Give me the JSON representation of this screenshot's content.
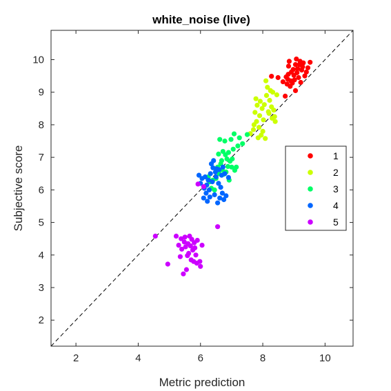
{
  "chart_data": {
    "type": "scatter",
    "title": "white_noise (live)",
    "xlabel": "Metric prediction",
    "ylabel": "Subjective score",
    "xlim": [
      1.2,
      10.9
    ],
    "ylim": [
      1.2,
      10.9
    ],
    "xticks": [
      2,
      4,
      6,
      8,
      10
    ],
    "yticks": [
      2,
      3,
      4,
      5,
      6,
      7,
      8,
      9,
      10
    ],
    "grid": false,
    "legend_position": "right",
    "reference_line": {
      "style": "dashed",
      "color": "#000000",
      "from": [
        1.2,
        1.2
      ],
      "to": [
        10.9,
        10.9
      ]
    },
    "series": [
      {
        "name": "1",
        "color": "#ff0000",
        "points": [
          [
            8.28,
            9.49
          ],
          [
            8.49,
            9.45
          ],
          [
            8.65,
            9.32
          ],
          [
            8.72,
            8.88
          ],
          [
            8.75,
            9.47
          ],
          [
            8.78,
            9.25
          ],
          [
            8.8,
            9.4
          ],
          [
            8.82,
            9.55
          ],
          [
            8.83,
            9.8
          ],
          [
            8.85,
            9.95
          ],
          [
            8.88,
            9.18
          ],
          [
            8.9,
            9.35
          ],
          [
            8.92,
            9.62
          ],
          [
            8.95,
            9.28
          ],
          [
            8.98,
            9.7
          ],
          [
            9.0,
            9.52
          ],
          [
            9.02,
            9.38
          ],
          [
            9.05,
            9.05
          ],
          [
            9.05,
            9.85
          ],
          [
            9.08,
            10.02
          ],
          [
            9.1,
            9.6
          ],
          [
            9.12,
            9.72
          ],
          [
            9.15,
            9.45
          ],
          [
            9.18,
            9.85
          ],
          [
            9.2,
            9.95
          ],
          [
            9.22,
            9.3
          ],
          [
            9.25,
            9.68
          ],
          [
            9.28,
            9.78
          ],
          [
            9.3,
            9.9
          ],
          [
            9.35,
            9.5
          ],
          [
            9.4,
            9.62
          ],
          [
            9.45,
            9.75
          ],
          [
            9.52,
            9.92
          ]
        ]
      },
      {
        "name": "2",
        "color": "#ccff00",
        "points": [
          [
            7.6,
            7.73
          ],
          [
            7.7,
            7.85
          ],
          [
            7.72,
            8.0
          ],
          [
            7.75,
            8.38
          ],
          [
            7.78,
            8.8
          ],
          [
            7.8,
            8.1
          ],
          [
            7.82,
            8.6
          ],
          [
            7.85,
            7.6
          ],
          [
            7.88,
            7.92
          ],
          [
            7.9,
            8.28
          ],
          [
            7.92,
            8.72
          ],
          [
            7.95,
            7.68
          ],
          [
            7.98,
            8.5
          ],
          [
            8.0,
            7.8
          ],
          [
            8.02,
            8.15
          ],
          [
            8.05,
            8.62
          ],
          [
            8.08,
            7.58
          ],
          [
            8.1,
            9.35
          ],
          [
            8.12,
            8.9
          ],
          [
            8.15,
            9.15
          ],
          [
            8.18,
            8.4
          ],
          [
            8.2,
            8.35
          ],
          [
            8.22,
            8.75
          ],
          [
            8.25,
            9.05
          ],
          [
            8.28,
            8.55
          ],
          [
            8.3,
            8.2
          ],
          [
            8.32,
            9.0
          ],
          [
            8.35,
            8.45
          ],
          [
            8.38,
            8.25
          ],
          [
            8.4,
            8.1
          ],
          [
            8.45,
            8.92
          ]
        ]
      },
      {
        "name": "3",
        "color": "#00ff66",
        "points": [
          [
            6.2,
            6.15
          ],
          [
            6.25,
            6.4
          ],
          [
            6.3,
            6.25
          ],
          [
            6.35,
            6.05
          ],
          [
            6.4,
            6.3
          ],
          [
            6.45,
            6.0
          ],
          [
            6.5,
            6.35
          ],
          [
            6.55,
            6.7
          ],
          [
            6.58,
            7.1
          ],
          [
            6.6,
            6.5
          ],
          [
            6.62,
            7.55
          ],
          [
            6.65,
            6.8
          ],
          [
            6.68,
            6.9
          ],
          [
            6.7,
            6.62
          ],
          [
            6.72,
            7.18
          ],
          [
            6.75,
            6.48
          ],
          [
            6.78,
            7.5
          ],
          [
            6.8,
            7.08
          ],
          [
            6.82,
            6.55
          ],
          [
            6.85,
            6.95
          ],
          [
            6.88,
            6.72
          ],
          [
            6.9,
            7.15
          ],
          [
            6.92,
            6.3
          ],
          [
            6.95,
            6.88
          ],
          [
            6.98,
            7.55
          ],
          [
            7.0,
            6.7
          ],
          [
            7.02,
            6.95
          ],
          [
            7.05,
            7.25
          ],
          [
            7.08,
            7.72
          ],
          [
            7.1,
            6.6
          ],
          [
            7.15,
            6.7
          ],
          [
            7.2,
            7.35
          ],
          [
            7.25,
            7.6
          ],
          [
            7.35,
            7.42
          ],
          [
            7.5,
            7.7
          ]
        ]
      },
      {
        "name": "4",
        "color": "#0066ff",
        "points": [
          [
            5.95,
            6.45
          ],
          [
            6.0,
            6.2
          ],
          [
            6.05,
            6.35
          ],
          [
            6.1,
            5.75
          ],
          [
            6.12,
            6.05
          ],
          [
            6.15,
            6.4
          ],
          [
            6.18,
            5.9
          ],
          [
            6.2,
            6.15
          ],
          [
            6.22,
            5.65
          ],
          [
            6.25,
            6.3
          ],
          [
            6.28,
            6.0
          ],
          [
            6.3,
            5.78
          ],
          [
            6.32,
            6.5
          ],
          [
            6.35,
            6.8
          ],
          [
            6.38,
            6.25
          ],
          [
            6.4,
            6.68
          ],
          [
            6.42,
            6.9
          ],
          [
            6.45,
            5.85
          ],
          [
            6.48,
            6.55
          ],
          [
            6.5,
            6.4
          ],
          [
            6.52,
            6.65
          ],
          [
            6.55,
            5.6
          ],
          [
            6.58,
            6.2
          ],
          [
            6.6,
            6.62
          ],
          [
            6.62,
            5.75
          ],
          [
            6.65,
            6.08
          ],
          [
            6.68,
            6.45
          ],
          [
            6.7,
            5.9
          ],
          [
            6.72,
            6.7
          ],
          [
            6.75,
            5.7
          ],
          [
            6.78,
            6.5
          ],
          [
            6.82,
            5.82
          ],
          [
            6.9,
            6.38
          ]
        ]
      },
      {
        "name": "5",
        "color": "#cc00ff",
        "points": [
          [
            4.55,
            4.58
          ],
          [
            4.95,
            3.72
          ],
          [
            5.22,
            4.58
          ],
          [
            5.3,
            4.3
          ],
          [
            5.35,
            3.95
          ],
          [
            5.38,
            4.5
          ],
          [
            5.4,
            4.18
          ],
          [
            5.45,
            3.42
          ],
          [
            5.48,
            4.4
          ],
          [
            5.5,
            4.55
          ],
          [
            5.52,
            4.25
          ],
          [
            5.55,
            3.55
          ],
          [
            5.58,
            3.98
          ],
          [
            5.6,
            4.35
          ],
          [
            5.62,
            4.05
          ],
          [
            5.65,
            4.58
          ],
          [
            5.68,
            4.28
          ],
          [
            5.7,
            3.85
          ],
          [
            5.72,
            4.48
          ],
          [
            5.75,
            4.15
          ],
          [
            5.78,
            3.8
          ],
          [
            5.8,
            4.38
          ],
          [
            5.82,
            4.22
          ],
          [
            5.85,
            4.0
          ],
          [
            5.88,
            3.75
          ],
          [
            5.9,
            4.45
          ],
          [
            5.92,
            6.18
          ],
          [
            5.98,
            3.8
          ],
          [
            6.0,
            3.65
          ],
          [
            6.05,
            4.3
          ],
          [
            6.1,
            6.1
          ],
          [
            6.55,
            4.87
          ]
        ]
      }
    ]
  }
}
